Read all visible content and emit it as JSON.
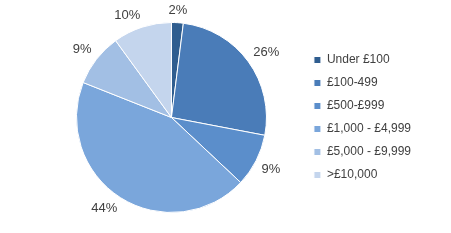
{
  "chart_data": {
    "type": "pie",
    "categories": [
      "Under £100",
      "£100-499",
      "£500-£999",
      "£1,000 - £4,999",
      "£5,000 - £9,999",
      ">£10,000"
    ],
    "values": [
      2,
      26,
      9,
      44,
      9,
      10
    ],
    "value_labels": [
      "2%",
      "26%",
      "9%",
      "44%",
      "9%",
      "10%"
    ],
    "colors": [
      "#2f5d8f",
      "#4a7cb8",
      "#5b8ecb",
      "#7aa6db",
      "#a2bfe4",
      "#c4d5ed"
    ],
    "legend": "right",
    "data_labels": true
  }
}
